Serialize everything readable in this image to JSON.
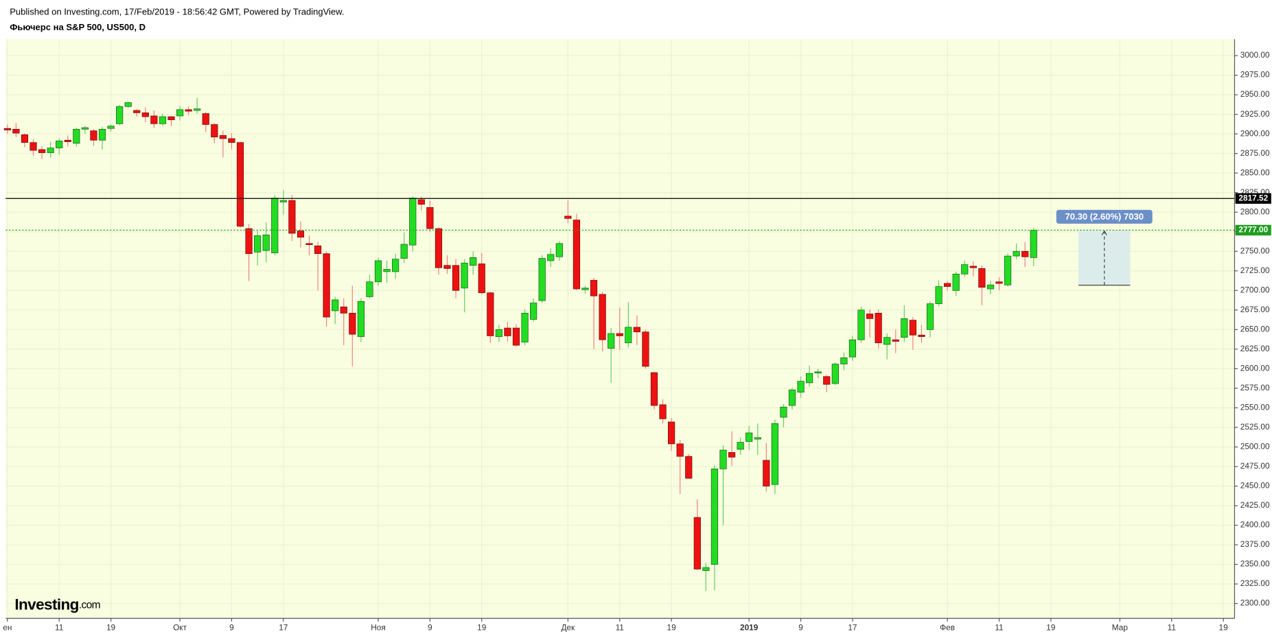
{
  "header": {
    "published": "Published on Investing.com, 17/Feb/2019 - 18:56:42 GMT, Powered by TradingView.",
    "symbol": "Фьючерс на S&P 500, US500, D"
  },
  "logo": {
    "brand": "Investing",
    "suffix": ".com"
  },
  "chart_data": {
    "type": "candlestick",
    "up_color": "#22dd22",
    "down_color": "#ee1111",
    "grid": true,
    "open": [
      2907,
      2906,
      2899,
      2889,
      2880,
      2876,
      2882,
      2892,
      2888,
      2906,
      2904,
      2892,
      2907,
      2913,
      2935,
      2930,
      2927,
      2923,
      2913,
      2922,
      2923,
      2931,
      2930,
      2926,
      2912,
      2898,
      2894,
      2889,
      2779,
      2749,
      2751,
      2748,
      2813,
      2815,
      2776,
      2760,
      2757,
      2747,
      2674,
      2679,
      2671,
      2641,
      2692,
      2711,
      2724,
      2724,
      2741,
      2758,
      2816,
      2806,
      2779,
      2732,
      2732,
      2703,
      2732,
      2734,
      2697,
      2641,
      2652,
      2652,
      2634,
      2663,
      2687,
      2738,
      2743,
      2795,
      2790,
      2701,
      2713,
      2695,
      2626,
      2645,
      2633,
      2653,
      2647,
      2595,
      2554,
      2532,
      2504,
      2488,
      2410,
      2342,
      2350,
      2472,
      2493,
      2497,
      2507,
      2510,
      2483,
      2452,
      2538,
      2553,
      2570,
      2582,
      2595,
      2590,
      2581,
      2606,
      2615,
      2637,
      2670,
      2671,
      2631,
      2637,
      2640,
      2662,
      2643,
      2650,
      2683,
      2709,
      2700,
      2721,
      2731,
      2728,
      2702,
      2711,
      2707,
      2744,
      2750,
      2742
    ],
    "high": [
      2912,
      2914,
      2901,
      2893,
      2884,
      2890,
      2894,
      2898,
      2908,
      2910,
      2906,
      2909,
      2912,
      2937,
      2941,
      2932,
      2934,
      2930,
      2926,
      2923,
      2936,
      2935,
      2946,
      2928,
      2914,
      2904,
      2901,
      2890,
      2785,
      2776,
      2787,
      2822,
      2828,
      2822,
      2788,
      2770,
      2762,
      2750,
      2692,
      2690,
      2706,
      2690,
      2720,
      2742,
      2738,
      2747,
      2774,
      2820,
      2820,
      2815,
      2781,
      2745,
      2740,
      2740,
      2750,
      2748,
      2698,
      2656,
      2660,
      2657,
      2676,
      2690,
      2745,
      2754,
      2763,
      2815,
      2798,
      2706,
      2716,
      2698,
      2652,
      2678,
      2685,
      2668,
      2650,
      2596,
      2561,
      2537,
      2509,
      2491,
      2433,
      2352,
      2477,
      2502,
      2520,
      2512,
      2527,
      2530,
      2505,
      2535,
      2555,
      2576,
      2590,
      2604,
      2600,
      2592,
      2608,
      2621,
      2642,
      2679,
      2676,
      2676,
      2645,
      2650,
      2681,
      2666,
      2656,
      2686,
      2713,
      2712,
      2724,
      2738,
      2737,
      2732,
      2712,
      2717,
      2747,
      2760,
      2762,
      2780
    ],
    "low": [
      2900,
      2896,
      2883,
      2872,
      2868,
      2870,
      2874,
      2884,
      2884,
      2900,
      2885,
      2880,
      2903,
      2911,
      2933,
      2922,
      2915,
      2908,
      2910,
      2910,
      2917,
      2924,
      2926,
      2902,
      2888,
      2870,
      2880,
      2780,
      2712,
      2732,
      2736,
      2745,
      2797,
      2763,
      2755,
      2745,
      2700,
      2654,
      2657,
      2630,
      2603,
      2634,
      2690,
      2706,
      2710,
      2715,
      2735,
      2750,
      2802,
      2775,
      2720,
      2721,
      2690,
      2672,
      2720,
      2695,
      2633,
      2634,
      2635,
      2628,
      2630,
      2660,
      2684,
      2730,
      2738,
      2786,
      2700,
      2696,
      2625,
      2622,
      2582,
      2624,
      2627,
      2630,
      2600,
      2548,
      2530,
      2495,
      2440,
      2459,
      2343,
      2316,
      2317,
      2400,
      2476,
      2490,
      2496,
      2490,
      2443,
      2440,
      2525,
      2548,
      2563,
      2577,
      2588,
      2570,
      2579,
      2598,
      2610,
      2633,
      2640,
      2626,
      2612,
      2620,
      2634,
      2624,
      2633,
      2640,
      2680,
      2700,
      2693,
      2717,
      2718,
      2681,
      2695,
      2700,
      2705,
      2740,
      2730,
      2731
    ],
    "close": [
      2905,
      2901,
      2889,
      2879,
      2876,
      2882,
      2891,
      2890,
      2906,
      2908,
      2892,
      2906,
      2910,
      2935,
      2940,
      2927,
      2922,
      2913,
      2922,
      2918,
      2931,
      2929,
      2932,
      2912,
      2896,
      2894,
      2889,
      2782,
      2747,
      2770,
      2771,
      2818,
      2815,
      2773,
      2768,
      2759,
      2747,
      2666,
      2688,
      2671,
      2644,
      2686,
      2711,
      2738,
      2727,
      2740,
      2759,
      2818,
      2810,
      2779,
      2729,
      2728,
      2700,
      2735,
      2742,
      2697,
      2642,
      2650,
      2642,
      2630,
      2671,
      2684,
      2741,
      2746,
      2760,
      2792,
      2702,
      2703,
      2693,
      2637,
      2645,
      2642,
      2653,
      2647,
      2603,
      2553,
      2536,
      2504,
      2488,
      2460,
      2344,
      2346,
      2472,
      2496,
      2487,
      2506,
      2518,
      2512,
      2450,
      2530,
      2551,
      2573,
      2584,
      2594,
      2596,
      2580,
      2606,
      2614,
      2637,
      2675,
      2664,
      2633,
      2640,
      2635,
      2664,
      2643,
      2641,
      2683,
      2705,
      2705,
      2721,
      2733,
      2729,
      2704,
      2707,
      2709,
      2744,
      2750,
      2743,
      2777
    ],
    "xlim": [
      -0.2,
      142.3
    ],
    "xticks": [
      {
        "value": 0,
        "label": "ен"
      },
      {
        "value": 6,
        "label": "11"
      },
      {
        "value": 12,
        "label": "19"
      },
      {
        "value": 20,
        "label": "Окт"
      },
      {
        "value": 26,
        "label": "9"
      },
      {
        "value": 32,
        "label": "17"
      },
      {
        "value": 43,
        "label": "Ноя"
      },
      {
        "value": 49,
        "label": "9"
      },
      {
        "value": 55,
        "label": "19"
      },
      {
        "value": 65,
        "label": "Дек"
      },
      {
        "value": 71,
        "label": "11"
      },
      {
        "value": 77,
        "label": "19"
      },
      {
        "value": 86,
        "label": "2019"
      },
      {
        "value": 92,
        "label": "9"
      },
      {
        "value": 98,
        "label": "17"
      },
      {
        "value": 109,
        "label": "Фев"
      },
      {
        "value": 115,
        "label": "11"
      },
      {
        "value": 121,
        "label": "19"
      },
      {
        "value": 129,
        "label": "Мар"
      },
      {
        "value": 135,
        "label": "11"
      },
      {
        "value": 141,
        "label": "19"
      }
    ],
    "ylim": [
      2281,
      3021
    ],
    "yticks": [
      {
        "value": 2300,
        "label": "2300.00"
      },
      {
        "value": 2325,
        "label": "2325.00"
      },
      {
        "value": 2350,
        "label": "2350.00"
      },
      {
        "value": 2375,
        "label": "2375.00"
      },
      {
        "value": 2400,
        "label": "2400.00"
      },
      {
        "value": 2425,
        "label": "2425.00"
      },
      {
        "value": 2450,
        "label": "2450.00"
      },
      {
        "value": 2475,
        "label": "2475.00"
      },
      {
        "value": 2500,
        "label": "2500.00"
      },
      {
        "value": 2525,
        "label": "2525.00"
      },
      {
        "value": 2550,
        "label": "2550.00"
      },
      {
        "value": 2575,
        "label": "2575.00"
      },
      {
        "value": 2600,
        "label": "2600.00"
      },
      {
        "value": 2625,
        "label": "2625.00"
      },
      {
        "value": 2650,
        "label": "2650.00"
      },
      {
        "value": 2675,
        "label": "2675.00"
      },
      {
        "value": 2700,
        "label": "2700.00"
      },
      {
        "value": 2725,
        "label": "2725.00"
      },
      {
        "value": 2750,
        "label": "2750.00"
      },
      {
        "value": 2775,
        "label": "2775.00"
      },
      {
        "value": 2800,
        "label": "2800.00"
      },
      {
        "value": 2825,
        "label": "2825.00"
      },
      {
        "value": 2850,
        "label": "2850.00"
      },
      {
        "value": 2875,
        "label": "2875.00"
      },
      {
        "value": 2900,
        "label": "2900.00"
      },
      {
        "value": 2925,
        "label": "2925.00"
      },
      {
        "value": 2950,
        "label": "2950.00"
      },
      {
        "value": 2975,
        "label": "2975.00"
      },
      {
        "value": 3000,
        "label": "3000.00"
      }
    ],
    "price_lines": [
      {
        "value": 2817.52,
        "label": "2817.52",
        "color": "#000000"
      },
      {
        "value": 2777,
        "label": "2777.00",
        "color": "#1e9e1e"
      }
    ],
    "measure": {
      "from": 2706.7,
      "to": 2777,
      "label": "70.30 (2.60%) 7030"
    }
  }
}
